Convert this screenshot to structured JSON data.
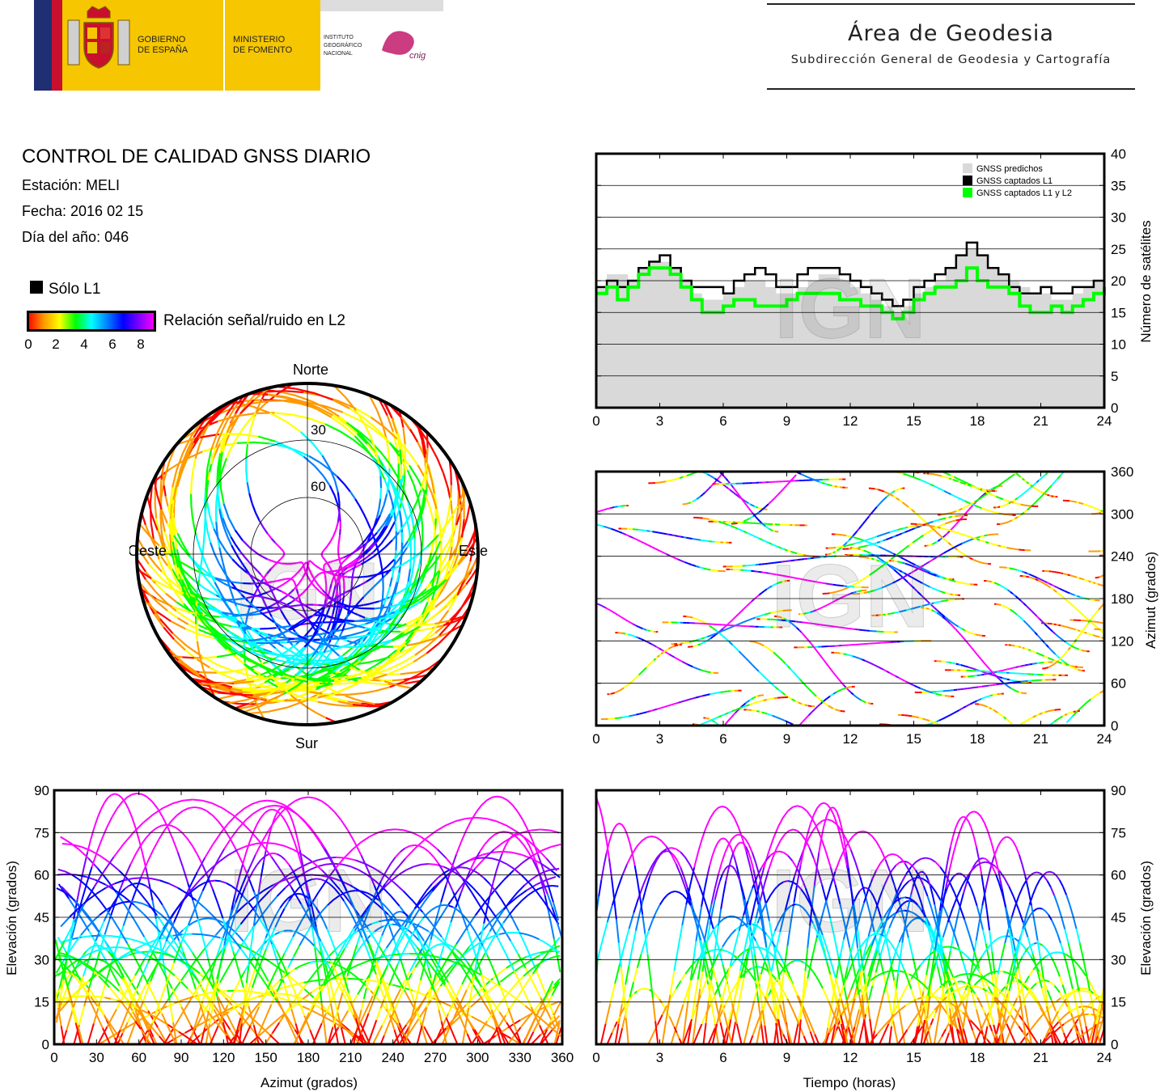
{
  "header": {
    "gov_line1": "GOBIERNO",
    "gov_line2": "DE ESPAÑA",
    "ministry_line1": "MINISTERIO",
    "ministry_line2": "DE FOMENTO",
    "ign_line1": "INSTITUTO",
    "ign_line2": "GEOGRÁFICO",
    "ign_line3": "NACIONAL",
    "cnig": "cnig",
    "area_title": "Área de Geodesia",
    "area_subtitle": "Subdirección General de Geodesia y Cartografía"
  },
  "info": {
    "title": "CONTROL DE CALIDAD GNSS DIARIO",
    "station": "Estación: MELI",
    "date": "Fecha: 2016 02 15",
    "doy": "Día del año: 046"
  },
  "legend": {
    "l1_only": "Sólo L1",
    "snr_label": "Relación señal/ruido en L2",
    "snr_ticks": [
      "0",
      "2",
      "4",
      "6",
      "8"
    ],
    "snr_colors": [
      "#ff0000",
      "#ff9900",
      "#ffff00",
      "#00ff00",
      "#00ffff",
      "#0080ff",
      "#0000ff",
      "#8000ff",
      "#ff00ff"
    ]
  },
  "watermark": "IGN",
  "colors": {
    "predicted": "#d9d9d9",
    "captured_l1": "#000000",
    "captured_l1l2": "#00ff00",
    "sky_border": "#000000"
  },
  "chart_data": [
    {
      "id": "satellite_count",
      "type": "area",
      "xlabel": "",
      "ylabel": "Número de satélites",
      "xlim": [
        0,
        24
      ],
      "ylim": [
        0,
        40
      ],
      "xticks": [
        "0",
        "3",
        "6",
        "9",
        "12",
        "15",
        "18",
        "21",
        "24"
      ],
      "yticks": [
        "0",
        "5",
        "10",
        "15",
        "20",
        "25",
        "30",
        "35",
        "40"
      ],
      "grid": true,
      "legend_position": "top-right",
      "x": [
        0,
        0.5,
        1,
        1.5,
        2,
        2.5,
        3,
        3.5,
        4,
        4.5,
        5,
        5.5,
        6,
        6.5,
        7,
        7.5,
        8,
        8.5,
        9,
        9.5,
        10,
        10.5,
        11,
        11.5,
        12,
        12.5,
        13,
        13.5,
        14,
        14.5,
        15,
        15.5,
        16,
        16.5,
        17,
        17.5,
        18,
        18.5,
        19,
        19.5,
        20,
        20.5,
        21,
        21.5,
        22,
        22.5,
        23,
        23.5,
        24
      ],
      "series": [
        {
          "name": "GNSS predichos",
          "values": [
            19,
            21,
            21,
            20,
            22,
            23,
            23,
            22,
            20,
            18,
            17,
            17,
            18,
            19,
            20,
            20,
            19,
            18,
            18,
            19,
            20,
            21,
            21,
            20,
            19,
            18,
            17,
            16,
            15,
            16,
            18,
            19,
            20,
            22,
            24,
            25,
            24,
            22,
            21,
            20,
            19,
            18,
            18,
            17,
            17,
            18,
            19,
            20,
            20
          ]
        },
        {
          "name": "GNSS captados L1",
          "values": [
            19,
            20,
            19,
            20,
            22,
            23,
            24,
            22,
            20,
            19,
            19,
            19,
            18,
            20,
            21,
            22,
            21,
            19,
            19,
            21,
            22,
            22,
            22,
            21,
            20,
            19,
            18,
            17,
            16,
            17,
            19,
            20,
            21,
            22,
            24,
            26,
            24,
            22,
            21,
            19,
            18,
            18,
            19,
            18,
            18,
            19,
            19,
            20,
            20
          ]
        },
        {
          "name": "GNSS captados L1 y L2",
          "values": [
            18,
            19,
            17,
            19,
            21,
            22,
            22,
            21,
            19,
            17,
            15,
            15,
            16,
            17,
            17,
            16,
            16,
            16,
            17,
            18,
            18,
            18,
            18,
            17,
            17,
            16,
            16,
            15,
            14,
            15,
            17,
            18,
            19,
            19,
            20,
            22,
            20,
            19,
            19,
            18,
            16,
            15,
            15,
            16,
            15,
            16,
            17,
            18,
            19
          ]
        }
      ]
    },
    {
      "id": "sky_plot",
      "type": "scatter",
      "labels": {
        "north": "Norte",
        "south": "Sur",
        "east": "Este",
        "west": "Oeste",
        "ring30": "30",
        "ring60": "60"
      }
    },
    {
      "id": "azimuth_time",
      "type": "scatter",
      "xlabel": "",
      "ylabel": "Azimut (grados)",
      "xlim": [
        0,
        24
      ],
      "ylim": [
        0,
        360
      ],
      "xticks": [
        "0",
        "3",
        "6",
        "9",
        "12",
        "15",
        "18",
        "21",
        "24"
      ],
      "yticks": [
        "0",
        "60",
        "120",
        "180",
        "240",
        "300",
        "360"
      ],
      "grid": true
    },
    {
      "id": "elevation_azimuth",
      "type": "scatter",
      "xlabel": "Azimut (grados)",
      "ylabel": "Elevación (grados)",
      "xlim": [
        0,
        360
      ],
      "ylim": [
        0,
        90
      ],
      "xticks": [
        "0",
        "30",
        "60",
        "90",
        "120",
        "150",
        "180",
        "210",
        "240",
        "270",
        "300",
        "330",
        "360"
      ],
      "yticks": [
        "0",
        "15",
        "30",
        "45",
        "60",
        "75",
        "90"
      ],
      "grid": true
    },
    {
      "id": "elevation_time",
      "type": "scatter",
      "xlabel": "Tiempo (horas)",
      "ylabel": "Elevación (grados)",
      "xlim": [
        0,
        24
      ],
      "ylim": [
        0,
        90
      ],
      "xticks": [
        "0",
        "3",
        "6",
        "9",
        "12",
        "15",
        "18",
        "21",
        "24"
      ],
      "yticks": [
        "0",
        "15",
        "30",
        "45",
        "60",
        "75",
        "90"
      ],
      "grid": true
    }
  ]
}
